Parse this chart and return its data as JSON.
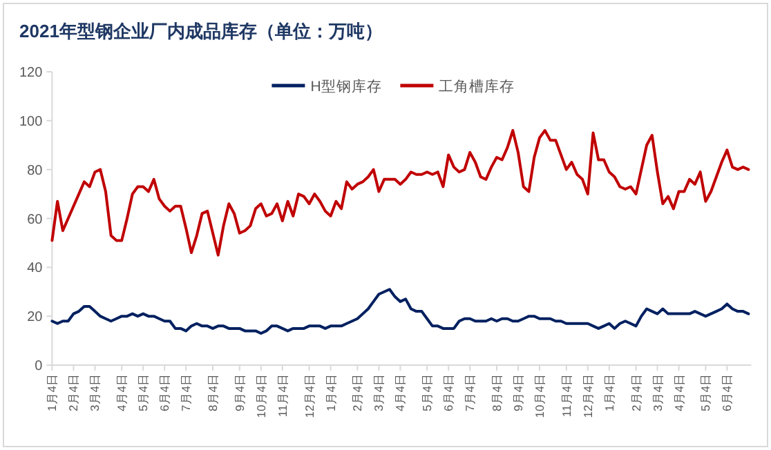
{
  "chart_data": {
    "type": "line",
    "title": "2021年型钢企业厂内成品库存（单位：万吨）",
    "categories": [
      "1月4日",
      null,
      null,
      null,
      "2月4日",
      null,
      null,
      null,
      "3月4日",
      null,
      null,
      null,
      null,
      "4月4日",
      null,
      null,
      null,
      "5月4日",
      null,
      null,
      null,
      "6月4日",
      null,
      null,
      null,
      "7月4日",
      null,
      null,
      null,
      null,
      "8月4日",
      null,
      null,
      null,
      null,
      "9月4日",
      null,
      null,
      null,
      "10月4日",
      null,
      null,
      null,
      "11月4日",
      null,
      null,
      null,
      null,
      "12月4日",
      null,
      null,
      null,
      "1月4日",
      null,
      null,
      null,
      null,
      "2月4日",
      null,
      null,
      null,
      "3月4日",
      null,
      null,
      null,
      "4月4日",
      null,
      null,
      null,
      null,
      "5月4日",
      null,
      null,
      null,
      "6月4日",
      null,
      null,
      null,
      "7月4日",
      null,
      null,
      null,
      null,
      "8月4日",
      null,
      null,
      null,
      "9月4日",
      null,
      null,
      null,
      "10月4日",
      null,
      null,
      null,
      null,
      "11月4日",
      null,
      null,
      null,
      "12月4日",
      null,
      null,
      null,
      "1月4日",
      null,
      null,
      null,
      null,
      "2月4日",
      null,
      null,
      null,
      "3月4日",
      null,
      null,
      null,
      "4月4日",
      null,
      null,
      null,
      null,
      "5月4日",
      null,
      null,
      null,
      "6月4日",
      null,
      null,
      null,
      null
    ],
    "series": [
      {
        "name": "H型钢库存",
        "color": "#002060",
        "values": [
          18,
          17,
          18,
          18,
          21,
          22,
          24,
          24,
          22,
          20,
          19,
          18,
          19,
          20,
          20,
          21,
          20,
          21,
          20,
          20,
          19,
          18,
          18,
          15,
          15,
          14,
          16,
          17,
          16,
          16,
          15,
          16,
          16,
          15,
          15,
          15,
          14,
          14,
          14,
          13,
          14,
          16,
          16,
          15,
          14,
          15,
          15,
          15,
          16,
          16,
          16,
          15,
          16,
          16,
          16,
          17,
          18,
          19,
          21,
          23,
          26,
          29,
          30,
          31,
          28,
          26,
          27,
          23,
          22,
          22,
          19,
          16,
          16,
          15,
          15,
          15,
          18,
          19,
          19,
          18,
          18,
          18,
          19,
          18,
          19,
          19,
          18,
          18,
          19,
          20,
          20,
          19,
          19,
          19,
          18,
          18,
          17,
          17,
          17,
          17,
          17,
          16,
          15,
          16,
          17,
          15,
          17,
          18,
          17,
          16,
          20,
          23,
          22,
          21,
          23,
          21,
          21,
          21,
          21,
          21,
          22,
          21,
          20,
          21,
          22,
          23,
          25,
          23,
          22,
          22,
          21
        ]
      },
      {
        "name": "工角槽库存",
        "color": "#c00000",
        "values": [
          51,
          67,
          55,
          60,
          65,
          70,
          75,
          73,
          79,
          80,
          71,
          53,
          51,
          51,
          60,
          70,
          73,
          73,
          71,
          76,
          68,
          65,
          63,
          65,
          65,
          56,
          46,
          53,
          62,
          63,
          54,
          45,
          57,
          66,
          62,
          54,
          55,
          57,
          64,
          66,
          61,
          62,
          66,
          59,
          67,
          61,
          70,
          69,
          66,
          70,
          67,
          63,
          61,
          67,
          64,
          75,
          72,
          74,
          75,
          77,
          80,
          71,
          76,
          76,
          76,
          74,
          76,
          79,
          78,
          78,
          79,
          78,
          79,
          73,
          86,
          81,
          79,
          80,
          87,
          83,
          77,
          76,
          81,
          85,
          84,
          89,
          96,
          87,
          73,
          71,
          85,
          93,
          96,
          92,
          92,
          86,
          80,
          83,
          78,
          76,
          70,
          95,
          84,
          84,
          79,
          77,
          73,
          72,
          73,
          70,
          80,
          90,
          94,
          79,
          66,
          69,
          64,
          71,
          71,
          76,
          74,
          79,
          67,
          71,
          77,
          83,
          88,
          81,
          80,
          81,
          80
        ]
      }
    ],
    "ylim": [
      0,
      120
    ],
    "yticks": [
      0,
      20,
      40,
      60,
      80,
      100,
      120
    ],
    "legend": "top"
  }
}
